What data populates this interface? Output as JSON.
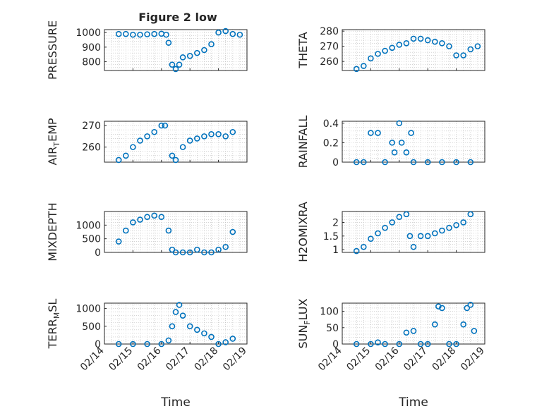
{
  "figure_title": "Figure 2 low",
  "colors": {
    "marker": "#0072BD",
    "axis": "#262626",
    "grid": "#bcbcbc",
    "background": "#ffffff"
  },
  "chart_data": [
    {
      "type": "scatter",
      "title": "Figure 2 low",
      "ylabel": "PRESSURE",
      "xlabel": "",
      "xlim": [
        "02/14",
        "02/19"
      ],
      "ylim": [
        740,
        1020
      ],
      "yticks": [
        800,
        900,
        1000
      ],
      "xticks": [
        "02/14",
        "02/15",
        "02/16",
        "02/17",
        "02/18",
        "02/19"
      ],
      "show_xtick_labels": false,
      "grid": true,
      "points": [
        [
          "02/14 12:00",
          990
        ],
        [
          "02/14 18:00",
          990
        ],
        [
          "02/15 00:00",
          985
        ],
        [
          "02/15 06:00",
          985
        ],
        [
          "02/15 12:00",
          988
        ],
        [
          "02/15 18:00",
          990
        ],
        [
          "02/16 00:00",
          992
        ],
        [
          "02/16 04:00",
          985
        ],
        [
          "02/16 06:00",
          930
        ],
        [
          "02/16 09:00",
          780
        ],
        [
          "02/16 12:00",
          750
        ],
        [
          "02/16 15:00",
          780
        ],
        [
          "02/16 18:00",
          830
        ],
        [
          "02/17 00:00",
          840
        ],
        [
          "02/17 06:00",
          860
        ],
        [
          "02/17 12:00",
          880
        ],
        [
          "02/17 18:00",
          920
        ],
        [
          "02/18 00:00",
          1000
        ],
        [
          "02/18 06:00",
          1010
        ],
        [
          "02/18 12:00",
          990
        ],
        [
          "02/18 18:00",
          985
        ]
      ]
    },
    {
      "type": "scatter",
      "ylabel": "THETA",
      "xlabel": "",
      "xlim": [
        "02/14",
        "02/19"
      ],
      "ylim": [
        254,
        281
      ],
      "yticks": [
        260,
        270,
        280
      ],
      "xticks": [
        "02/14",
        "02/15",
        "02/16",
        "02/17",
        "02/18",
        "02/19"
      ],
      "show_xtick_labels": false,
      "grid": true,
      "points": [
        [
          "02/14 12:00",
          255
        ],
        [
          "02/14 18:00",
          257
        ],
        [
          "02/15 00:00",
          262
        ],
        [
          "02/15 06:00",
          265
        ],
        [
          "02/15 12:00",
          267
        ],
        [
          "02/15 18:00",
          269
        ],
        [
          "02/16 00:00",
          271
        ],
        [
          "02/16 06:00",
          272
        ],
        [
          "02/16 12:00",
          275
        ],
        [
          "02/16 18:00",
          275
        ],
        [
          "02/17 00:00",
          274
        ],
        [
          "02/17 06:00",
          273
        ],
        [
          "02/17 12:00",
          272
        ],
        [
          "02/17 18:00",
          270
        ],
        [
          "02/18 00:00",
          264
        ],
        [
          "02/18 06:00",
          264
        ],
        [
          "02/18 12:00",
          268
        ],
        [
          "02/18 18:00",
          270
        ]
      ]
    },
    {
      "type": "scatter",
      "ylabel": "AIR_TEMP",
      "ylabel_main": "AIR",
      "ylabel_sub": "T",
      "ylabel_rest": "EMP",
      "xlabel": "",
      "xlim": [
        "02/14",
        "02/19"
      ],
      "ylim": [
        253,
        272
      ],
      "yticks": [
        260,
        270
      ],
      "xticks": [
        "02/14",
        "02/15",
        "02/16",
        "02/17",
        "02/18",
        "02/19"
      ],
      "show_xtick_labels": false,
      "grid": true,
      "points": [
        [
          "02/14 12:00",
          254
        ],
        [
          "02/14 18:00",
          256
        ],
        [
          "02/15 00:00",
          260
        ],
        [
          "02/15 06:00",
          263
        ],
        [
          "02/15 12:00",
          265
        ],
        [
          "02/15 18:00",
          267
        ],
        [
          "02/16 00:00",
          270
        ],
        [
          "02/16 03:00",
          270
        ],
        [
          "02/16 09:00",
          256
        ],
        [
          "02/16 12:00",
          254
        ],
        [
          "02/16 18:00",
          260
        ],
        [
          "02/17 00:00",
          263
        ],
        [
          "02/17 06:00",
          264
        ],
        [
          "02/17 12:00",
          265
        ],
        [
          "02/17 18:00",
          266
        ],
        [
          "02/18 00:00",
          266
        ],
        [
          "02/18 06:00",
          265
        ],
        [
          "02/18 12:00",
          267
        ]
      ]
    },
    {
      "type": "scatter",
      "ylabel": "RAINFALL",
      "xlabel": "",
      "xlim": [
        "02/14",
        "02/19"
      ],
      "ylim": [
        0,
        0.42
      ],
      "yticks": [
        0,
        0.2,
        0.4
      ],
      "xticks": [
        "02/14",
        "02/15",
        "02/16",
        "02/17",
        "02/18",
        "02/19"
      ],
      "show_xtick_labels": false,
      "grid": true,
      "points": [
        [
          "02/14 12:00",
          0
        ],
        [
          "02/14 18:00",
          0
        ],
        [
          "02/15 00:00",
          0.3
        ],
        [
          "02/15 06:00",
          0.3
        ],
        [
          "02/15 12:00",
          0
        ],
        [
          "02/15 18:00",
          0.2
        ],
        [
          "02/15 20:00",
          0.1
        ],
        [
          "02/16 00:00",
          0.4
        ],
        [
          "02/16 02:00",
          0.2
        ],
        [
          "02/16 06:00",
          0.1
        ],
        [
          "02/16 10:00",
          0.3
        ],
        [
          "02/16 12:00",
          0
        ],
        [
          "02/17 00:00",
          0
        ],
        [
          "02/17 12:00",
          0
        ],
        [
          "02/18 00:00",
          0
        ],
        [
          "02/18 12:00",
          0
        ]
      ]
    },
    {
      "type": "scatter",
      "ylabel": "MIXDEPTH",
      "xlabel": "",
      "xlim": [
        "02/14",
        "02/19"
      ],
      "ylim": [
        0,
        1500
      ],
      "yticks": [
        0,
        500,
        1000
      ],
      "xticks": [
        "02/14",
        "02/15",
        "02/16",
        "02/17",
        "02/18",
        "02/19"
      ],
      "show_xtick_labels": false,
      "grid": true,
      "points": [
        [
          "02/14 12:00",
          400
        ],
        [
          "02/14 18:00",
          800
        ],
        [
          "02/15 00:00",
          1100
        ],
        [
          "02/15 06:00",
          1200
        ],
        [
          "02/15 12:00",
          1300
        ],
        [
          "02/15 18:00",
          1350
        ],
        [
          "02/16 00:00",
          1300
        ],
        [
          "02/16 06:00",
          800
        ],
        [
          "02/16 09:00",
          100
        ],
        [
          "02/16 12:00",
          0
        ],
        [
          "02/16 18:00",
          0
        ],
        [
          "02/17 00:00",
          0
        ],
        [
          "02/17 06:00",
          100
        ],
        [
          "02/17 12:00",
          0
        ],
        [
          "02/17 18:00",
          0
        ],
        [
          "02/18 00:00",
          100
        ],
        [
          "02/18 06:00",
          200
        ],
        [
          "02/18 12:00",
          750
        ]
      ]
    },
    {
      "type": "scatter",
      "ylabel": "H2OMIXRA",
      "xlabel": "",
      "xlim": [
        "02/14",
        "02/19"
      ],
      "ylim": [
        0.9,
        2.4
      ],
      "yticks": [
        1,
        1.5,
        2
      ],
      "xticks": [
        "02/14",
        "02/15",
        "02/16",
        "02/17",
        "02/18",
        "02/19"
      ],
      "show_xtick_labels": false,
      "grid": true,
      "points": [
        [
          "02/14 12:00",
          0.95
        ],
        [
          "02/14 18:00",
          1.1
        ],
        [
          "02/15 00:00",
          1.4
        ],
        [
          "02/15 06:00",
          1.6
        ],
        [
          "02/15 12:00",
          1.8
        ],
        [
          "02/15 18:00",
          2.0
        ],
        [
          "02/16 00:00",
          2.2
        ],
        [
          "02/16 06:00",
          2.3
        ],
        [
          "02/16 09:00",
          1.5
        ],
        [
          "02/16 12:00",
          1.1
        ],
        [
          "02/16 18:00",
          1.5
        ],
        [
          "02/17 00:00",
          1.5
        ],
        [
          "02/17 06:00",
          1.6
        ],
        [
          "02/17 12:00",
          1.7
        ],
        [
          "02/17 18:00",
          1.8
        ],
        [
          "02/18 00:00",
          1.9
        ],
        [
          "02/18 06:00",
          2.0
        ],
        [
          "02/18 12:00",
          2.3
        ]
      ]
    },
    {
      "type": "scatter",
      "ylabel": "TERR_MSL",
      "ylabel_main": "TERR",
      "ylabel_sub": "M",
      "ylabel_rest": "SL",
      "xlabel": "Time",
      "xlim": [
        "02/14",
        "02/19"
      ],
      "ylim": [
        0,
        1150
      ],
      "yticks": [
        0,
        500,
        1000
      ],
      "xticks": [
        "02/14",
        "02/15",
        "02/16",
        "02/17",
        "02/18",
        "02/19"
      ],
      "show_xtick_labels": true,
      "grid": true,
      "points": [
        [
          "02/14 12:00",
          0
        ],
        [
          "02/15 00:00",
          0
        ],
        [
          "02/15 12:00",
          0
        ],
        [
          "02/16 00:00",
          0
        ],
        [
          "02/16 06:00",
          100
        ],
        [
          "02/16 09:00",
          500
        ],
        [
          "02/16 12:00",
          900
        ],
        [
          "02/16 15:00",
          1100
        ],
        [
          "02/16 18:00",
          800
        ],
        [
          "02/17 00:00",
          500
        ],
        [
          "02/17 06:00",
          400
        ],
        [
          "02/17 12:00",
          300
        ],
        [
          "02/17 18:00",
          200
        ],
        [
          "02/18 00:00",
          0
        ],
        [
          "02/18 06:00",
          50
        ],
        [
          "02/18 12:00",
          150
        ]
      ]
    },
    {
      "type": "scatter",
      "ylabel": "SUN_FLUX",
      "ylabel_main": "SUN",
      "ylabel_sub": "F",
      "ylabel_rest": "LUX",
      "xlabel": "Time",
      "xlim": [
        "02/14",
        "02/19"
      ],
      "ylim": [
        0,
        125
      ],
      "yticks": [
        0,
        50,
        100
      ],
      "xticks": [
        "02/14",
        "02/15",
        "02/16",
        "02/17",
        "02/18",
        "02/19"
      ],
      "show_xtick_labels": true,
      "grid": true,
      "points": [
        [
          "02/14 12:00",
          0
        ],
        [
          "02/15 00:00",
          0
        ],
        [
          "02/15 06:00",
          5
        ],
        [
          "02/15 12:00",
          0
        ],
        [
          "02/16 00:00",
          0
        ],
        [
          "02/16 06:00",
          35
        ],
        [
          "02/16 12:00",
          40
        ],
        [
          "02/16 18:00",
          0
        ],
        [
          "02/17 00:00",
          0
        ],
        [
          "02/17 06:00",
          60
        ],
        [
          "02/17 09:00",
          115
        ],
        [
          "02/17 12:00",
          110
        ],
        [
          "02/17 18:00",
          0
        ],
        [
          "02/18 00:00",
          0
        ],
        [
          "02/18 06:00",
          60
        ],
        [
          "02/18 09:00",
          110
        ],
        [
          "02/18 12:00",
          120
        ],
        [
          "02/18 15:00",
          40
        ]
      ]
    }
  ]
}
